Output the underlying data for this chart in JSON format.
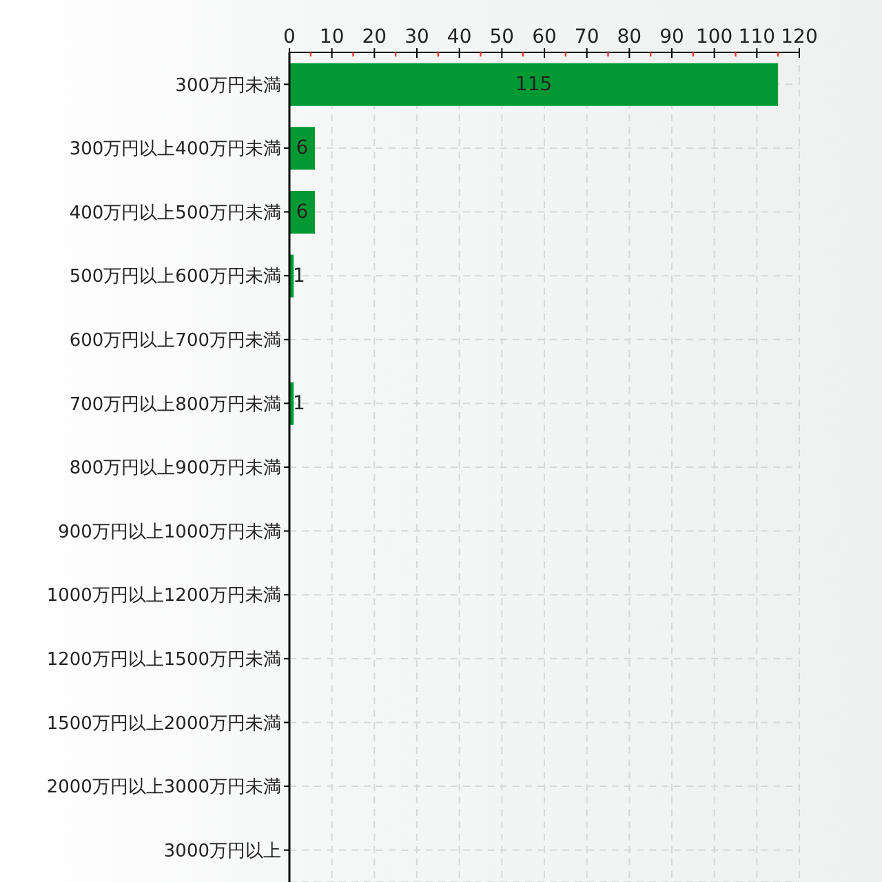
{
  "chart_data": {
    "type": "bar",
    "orientation": "horizontal",
    "categories": [
      "300万円未満",
      "300万円以上400万円未満",
      "400万円以上500万円未満",
      "500万円以上600万円未満",
      "600万円以上700万円未満",
      "700万円以上800万円未満",
      "800万円以上900万円未満",
      "900万円以上1000万円未満",
      "1000万円以上1200万円未満",
      "1200万円以上1500万円未満",
      "1500万円以上2000万円未満",
      "2000万円以上3000万円未満",
      "3000万円以上"
    ],
    "values": [
      115,
      6,
      6,
      1,
      0,
      1,
      0,
      0,
      0,
      0,
      0,
      0,
      0
    ],
    "value_labels": [
      "115",
      "6",
      "6",
      "1",
      null,
      "1",
      null,
      null,
      null,
      null,
      null,
      null,
      null
    ],
    "color": "#009933",
    "xlim": [
      0,
      120
    ],
    "xticks": [
      0,
      {
        "value": 5,
        "label": null
      },
      10,
      {
        "value": 15,
        "label": null
      },
      20,
      {
        "value": 25,
        "label": null
      },
      30,
      {
        "value": 35,
        "label": null
      },
      40,
      {
        "value": 45,
        "label": null
      },
      50,
      {
        "value": 55,
        "label": null
      },
      60,
      {
        "value": 65,
        "label": null
      },
      70,
      {
        "value": 75,
        "label": null
      },
      80,
      {
        "value": 85,
        "label": null
      },
      90,
      {
        "value": 95,
        "label": null
      },
      100,
      {
        "value": 105,
        "label": null
      },
      110,
      {
        "value": 115,
        "label": null
      },
      120
    ],
    "grid": true
  }
}
